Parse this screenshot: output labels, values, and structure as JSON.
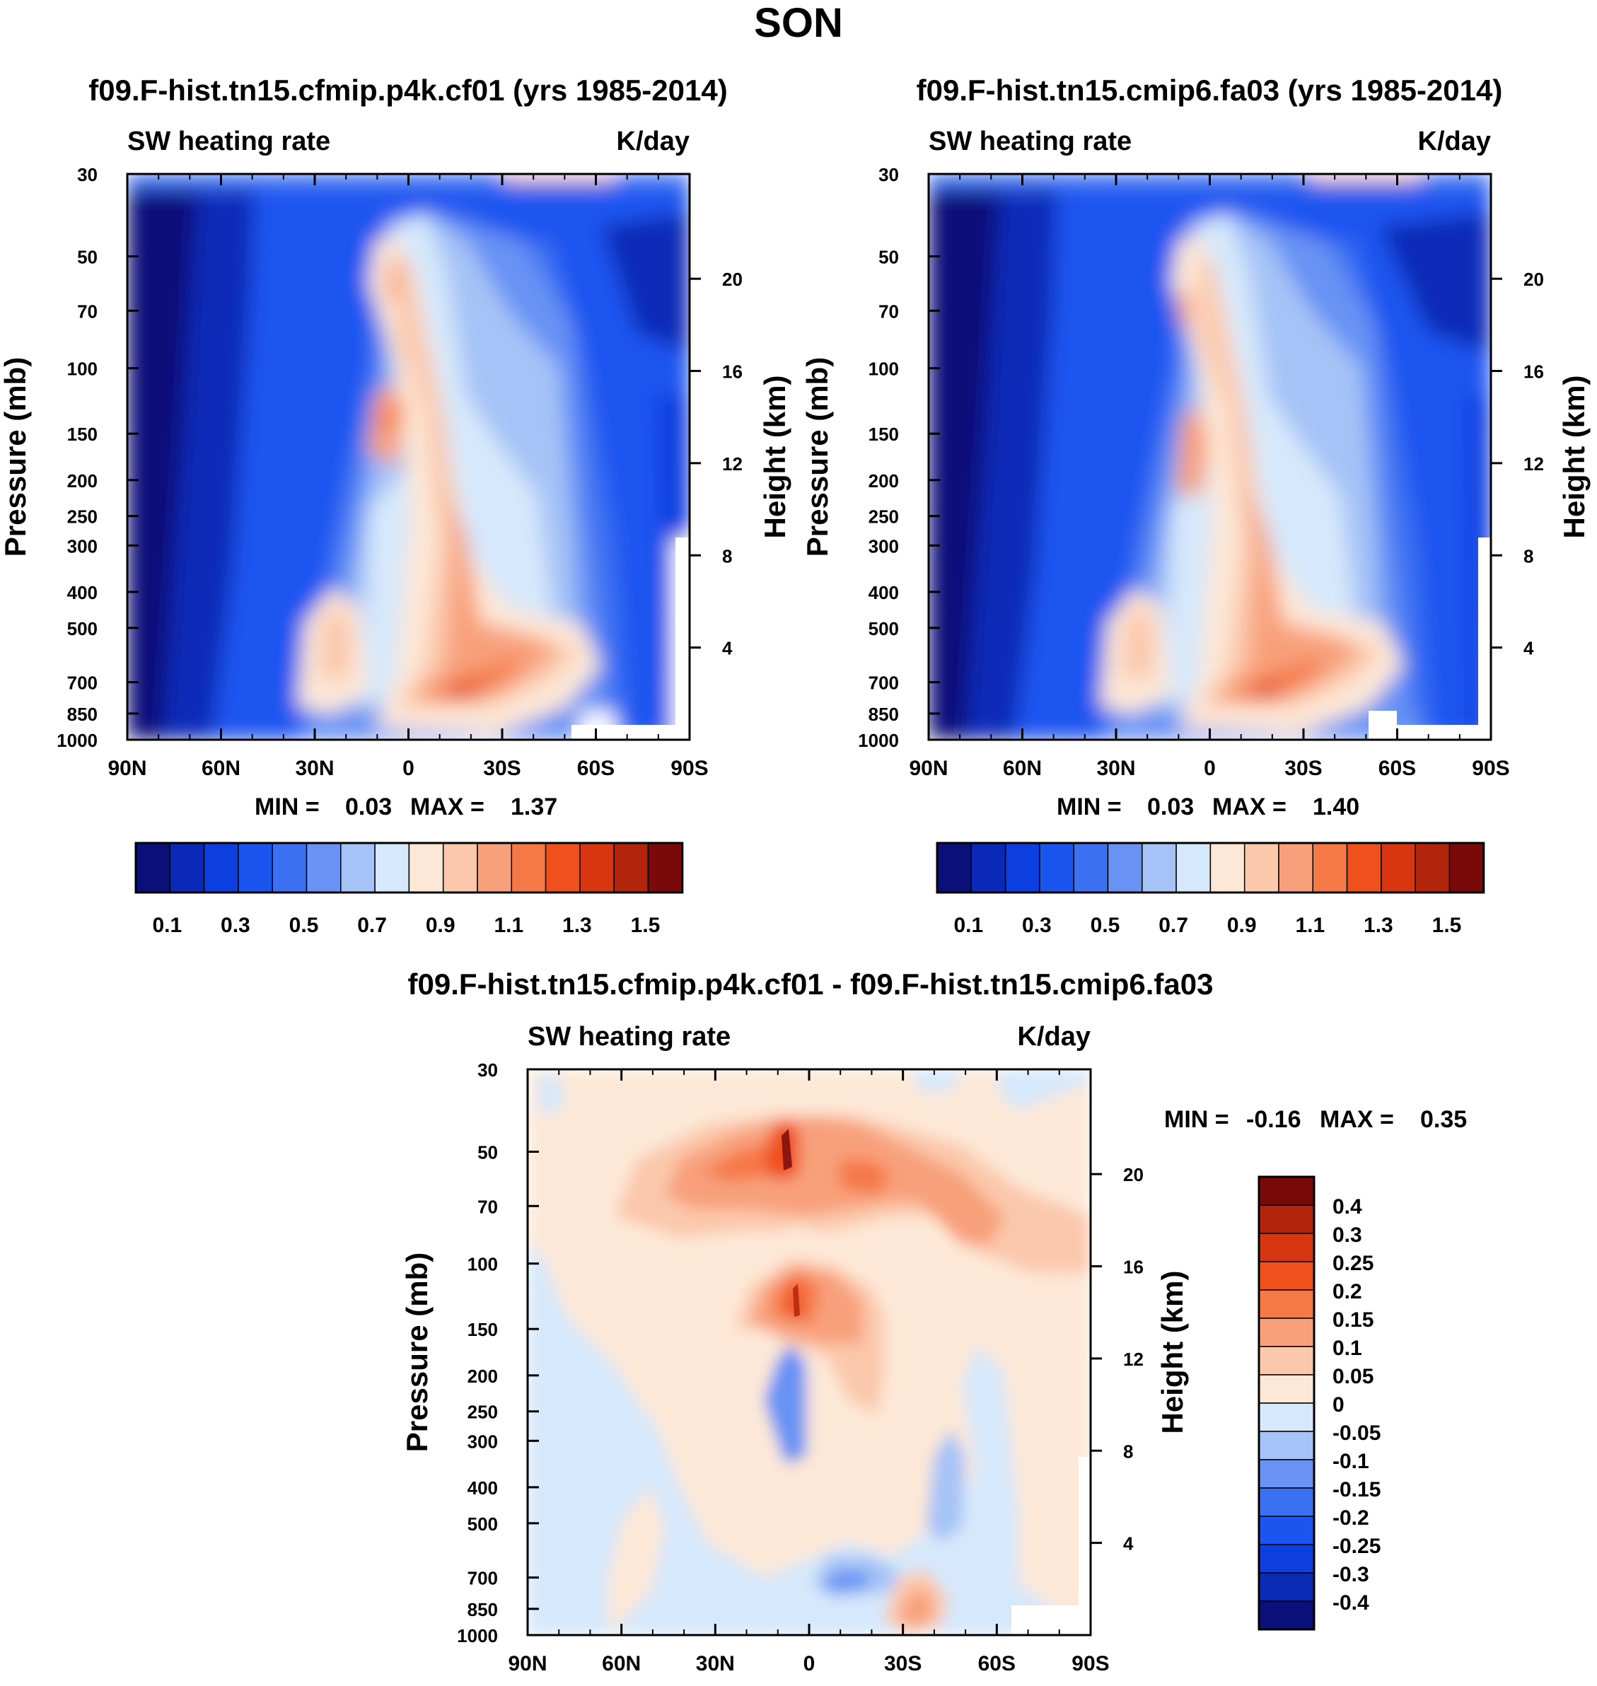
{
  "figure_title": "SON",
  "chart_data": [
    {
      "type": "heatmap",
      "title": "f09.F-hist.tn15.cfmip.p4k.cf01 (yrs 1985-2014)",
      "left_label": "SW heating rate",
      "right_label": "K/day",
      "xlabel": "",
      "ylabel": "Pressure (mb)",
      "y2label": "Height (km)",
      "x_ticks": [
        "90N",
        "60N",
        "30N",
        "0",
        "30S",
        "60S",
        "90S"
      ],
      "y_ticks": [
        "30",
        "50",
        "70",
        "100",
        "150",
        "200",
        "250",
        "300",
        "400",
        "500",
        "700",
        "850",
        "1000"
      ],
      "y2_ticks": [
        "20",
        "16",
        "12",
        "8",
        "4"
      ],
      "stats": {
        "min_label": "MIN =",
        "min": "0.03",
        "max_label": "MAX =",
        "max": "1.37"
      },
      "colorbar_labels": [
        "0.1",
        "0.3",
        "0.5",
        "0.7",
        "0.9",
        "1.1",
        "1.3",
        "1.5"
      ]
    },
    {
      "type": "heatmap",
      "title": "f09.F-hist.tn15.cmip6.fa03 (yrs 1985-2014)",
      "left_label": "SW heating rate",
      "right_label": "K/day",
      "xlabel": "",
      "ylabel": "Pressure (mb)",
      "y2label": "Height (km)",
      "x_ticks": [
        "90N",
        "60N",
        "30N",
        "0",
        "30S",
        "60S",
        "90S"
      ],
      "y_ticks": [
        "30",
        "50",
        "70",
        "100",
        "150",
        "200",
        "250",
        "300",
        "400",
        "500",
        "700",
        "850",
        "1000"
      ],
      "y2_ticks": [
        "20",
        "16",
        "12",
        "8",
        "4"
      ],
      "stats": {
        "min_label": "MIN =",
        "min": "0.03",
        "max_label": "MAX =",
        "max": "1.40"
      },
      "colorbar_labels": [
        "0.1",
        "0.3",
        "0.5",
        "0.7",
        "0.9",
        "1.1",
        "1.3",
        "1.5"
      ]
    },
    {
      "type": "heatmap",
      "title": "f09.F-hist.tn15.cfmip.p4k.cf01 - f09.F-hist.tn15.cmip6.fa03",
      "left_label": "SW heating rate",
      "right_label": "K/day",
      "xlabel": "",
      "ylabel": "Pressure (mb)",
      "y2label": "Height (km)",
      "x_ticks": [
        "90N",
        "60N",
        "30N",
        "0",
        "30S",
        "60S",
        "90S"
      ],
      "y_ticks": [
        "30",
        "50",
        "70",
        "100",
        "150",
        "200",
        "250",
        "300",
        "400",
        "500",
        "700",
        "850",
        "1000"
      ],
      "y2_ticks": [
        "20",
        "16",
        "12",
        "8",
        "4"
      ],
      "stats": {
        "min_label": "MIN =",
        "min": "-0.16",
        "max_label": "MAX =",
        "max": "0.35"
      },
      "colorbar_labels": [
        "0.4",
        "0.3",
        "0.25",
        "0.2",
        "0.15",
        "0.1",
        "0.05",
        "0",
        "-0.05",
        "-0.1",
        "-0.15",
        "-0.2",
        "-0.25",
        "-0.3",
        "-0.4"
      ]
    }
  ],
  "palettes": {
    "full": [
      "#0a0f7a",
      "#0a29b8",
      "#0c3ee0",
      "#1b55f0",
      "#3b70f2",
      "#6892f4",
      "#a6c3f7",
      "#d6e8fb",
      "#fde8d7",
      "#fbc8ac",
      "#f8a07c",
      "#f57847",
      "#f0501c",
      "#d83610",
      "#b3240c",
      "#7a0a0a"
    ],
    "diff": [
      "#0a0f7a",
      "#0a2bb6",
      "#0c3ee0",
      "#1b55f0",
      "#3b70f2",
      "#6892f4",
      "#a6c3f7",
      "#d6e8fb",
      "#fde8d7",
      "#fbc8ac",
      "#f8a07c",
      "#f57847",
      "#f0501c",
      "#d83610",
      "#b3240c",
      "#7a0a0a"
    ]
  }
}
